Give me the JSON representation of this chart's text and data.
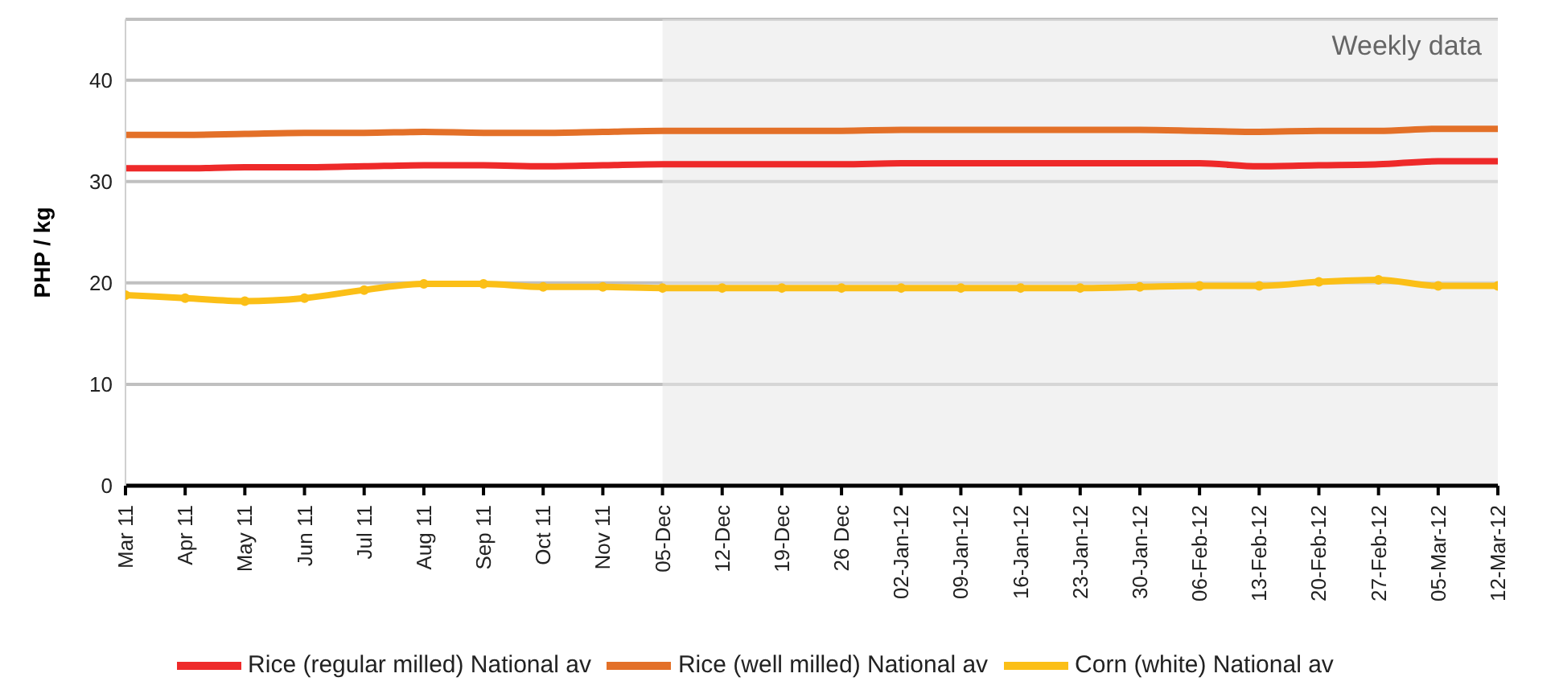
{
  "chart_data": {
    "type": "line",
    "ylabel": "PHP / kg",
    "categories": [
      "Mar 11",
      "Apr 11",
      "May 11",
      "Jun 11",
      "Jul 11",
      "Aug 11",
      "Sep 11",
      "Oct 11",
      "Nov 11",
      "05-Dec",
      "12-Dec",
      "19-Dec",
      "26 Dec",
      "02-Jan-12",
      "09-Jan-12",
      "16-Jan-12",
      "23-Jan-12",
      "30-Jan-12",
      "06-Feb-12",
      "13-Feb-12",
      "20-Feb-12",
      "27-Feb-12",
      "05-Mar-12",
      "12-Mar-12"
    ],
    "series": [
      {
        "name": "Rice (regular milled) National av",
        "color": "#ee2a2a",
        "marker": "none",
        "values": [
          31.3,
          31.3,
          31.4,
          31.4,
          31.5,
          31.6,
          31.6,
          31.5,
          31.6,
          31.7,
          31.7,
          31.7,
          31.7,
          31.8,
          31.8,
          31.8,
          31.8,
          31.8,
          31.8,
          31.5,
          31.6,
          31.7,
          32.0,
          32.0
        ]
      },
      {
        "name": "Rice (well milled) National av",
        "color": "#e37028",
        "marker": "none",
        "values": [
          34.6,
          34.6,
          34.7,
          34.8,
          34.8,
          34.9,
          34.8,
          34.8,
          34.9,
          35.0,
          35.0,
          35.0,
          35.0,
          35.1,
          35.1,
          35.1,
          35.1,
          35.1,
          35.0,
          34.9,
          35.0,
          35.0,
          35.2,
          35.2
        ]
      },
      {
        "name": "Corn (white)  National av",
        "color": "#fbbf17",
        "marker": "circle",
        "values": [
          18.8,
          18.5,
          18.2,
          18.5,
          19.3,
          19.9,
          19.9,
          19.6,
          19.6,
          19.5,
          19.5,
          19.5,
          19.5,
          19.5,
          19.5,
          19.5,
          19.5,
          19.6,
          19.7,
          19.7,
          20.1,
          20.3,
          19.7,
          19.7
        ]
      }
    ],
    "ylim": [
      0,
      46
    ],
    "yticks": [
      0,
      10,
      20,
      30,
      40
    ],
    "grid": "y",
    "legend": "bottom",
    "bands": [
      {
        "axis": "x",
        "from": "05-Dec",
        "to": "12-Mar-12",
        "label": "Weekly data",
        "color": "#e8e8e8"
      }
    ]
  }
}
